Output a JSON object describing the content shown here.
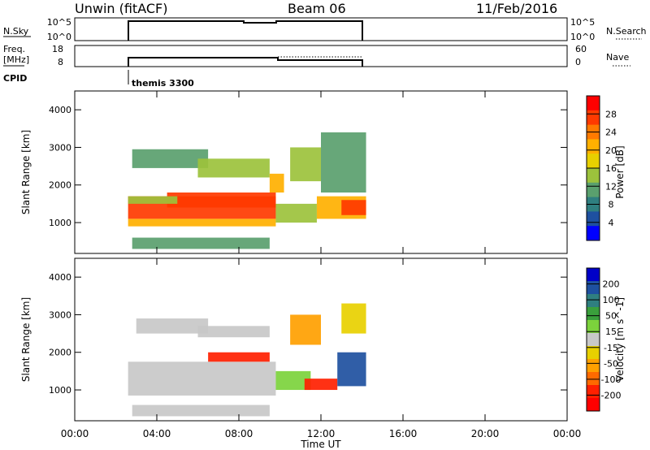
{
  "header": {
    "station": "Unwin (fitACF)",
    "beam": "Beam 06",
    "date": "11/Feb/2016"
  },
  "top_panels": {
    "nsky_label": "N.Sky",
    "nsky_ticks": [
      "10^5",
      "10^0"
    ],
    "nsearch_label": "N.Search",
    "freq_label_1": "Freq.",
    "freq_label_2": "[MHz]",
    "freq_ticks": [
      "18",
      "8"
    ],
    "nave_ticks": [
      "60",
      "0"
    ],
    "nave_label": "Nave",
    "cpid_label": "CPID",
    "cpid_value": "themis 3300"
  },
  "x_axis": {
    "label": "Time UT",
    "ticks": [
      "00:00",
      "04:00",
      "08:00",
      "12:00",
      "16:00",
      "20:00",
      "00:00"
    ]
  },
  "power_colorbar": {
    "label": "Power [dB]",
    "ticks": [
      "28",
      "24",
      "20",
      "16",
      "12",
      "8",
      "4"
    ],
    "colors": [
      "#ff0000",
      "#ff3a00",
      "#ff7a00",
      "#ffb000",
      "#e8d000",
      "#9cc23c",
      "#5aa06e",
      "#2f7f80",
      "#1e50a0",
      "#0000ff"
    ]
  },
  "velocity_colorbar": {
    "label": "Velocity [m s^-1]",
    "ticks": [
      "200",
      "100",
      "50",
      "15",
      "-15",
      "-50",
      "-100",
      "-200"
    ],
    "colors": [
      "#0000c8",
      "#1e50a0",
      "#2f7f80",
      "#3aa03c",
      "#7cd23c",
      "#c8c8c8",
      "#e8d000",
      "#ffa000",
      "#ff6a00",
      "#ff2000",
      "#ff0000"
    ]
  },
  "chart_data": [
    {
      "type": "heatmap",
      "title": "",
      "xlabel": "Time UT",
      "ylabel": "Slant Range [km]",
      "xlim": [
        0,
        24
      ],
      "ylim": [
        180,
        4500
      ],
      "yticks": [
        "4000",
        "3000",
        "2000",
        "1000"
      ],
      "colorbar_label": "Power [dB]",
      "color_range": [
        0,
        32
      ],
      "cells": [
        {
          "t0": 2.6,
          "t1": 9.8,
          "r0": 1100,
          "r1": 1700,
          "value": 28
        },
        {
          "t0": 2.6,
          "t1": 9.8,
          "r0": 900,
          "r1": 1100,
          "value": 22
        },
        {
          "t0": 4.5,
          "t1": 9.8,
          "r0": 1400,
          "r1": 1800,
          "value": 26
        },
        {
          "t0": 2.6,
          "t1": 5.0,
          "r0": 1500,
          "r1": 1700,
          "value": 14
        },
        {
          "t0": 9.8,
          "t1": 11.8,
          "r0": 1000,
          "r1": 1500,
          "value": 14
        },
        {
          "t0": 11.8,
          "t1": 14.2,
          "r0": 1100,
          "r1": 1700,
          "value": 20
        },
        {
          "t0": 13.0,
          "t1": 14.2,
          "r0": 1200,
          "r1": 1600,
          "value": 26
        },
        {
          "t0": 2.8,
          "t1": 6.5,
          "r0": 2450,
          "r1": 2950,
          "value": 10
        },
        {
          "t0": 6.0,
          "t1": 9.5,
          "r0": 2200,
          "r1": 2700,
          "value": 14
        },
        {
          "t0": 9.5,
          "t1": 10.2,
          "r0": 1800,
          "r1": 2300,
          "value": 22
        },
        {
          "t0": 10.5,
          "t1": 12.0,
          "r0": 2100,
          "r1": 3000,
          "value": 16
        },
        {
          "t0": 12.0,
          "t1": 14.2,
          "r0": 1800,
          "r1": 3400,
          "value": 12
        },
        {
          "t0": 2.8,
          "t1": 9.5,
          "r0": 300,
          "r1": 600,
          "value": 10
        }
      ]
    },
    {
      "type": "heatmap",
      "title": "",
      "xlabel": "Time UT",
      "ylabel": "Slant Range [km]",
      "xlim": [
        0,
        24
      ],
      "ylim": [
        180,
        4500
      ],
      "yticks": [
        "4000",
        "3000",
        "2000",
        "1000"
      ],
      "colorbar_label": "Velocity [m s^-1]",
      "color_range": [
        -250,
        250
      ],
      "cells": [
        {
          "t0": 2.6,
          "t1": 9.8,
          "r0": 850,
          "r1": 1750,
          "value": 0
        },
        {
          "t0": 9.8,
          "t1": 11.5,
          "r0": 1000,
          "r1": 1500,
          "value": 30
        },
        {
          "t0": 3.0,
          "t1": 6.5,
          "r0": 2500,
          "r1": 2900,
          "value": 0
        },
        {
          "t0": 6.0,
          "t1": 9.5,
          "r0": 2400,
          "r1": 2700,
          "value": -10
        },
        {
          "t0": 6.5,
          "t1": 9.5,
          "r0": 1750,
          "r1": 2000,
          "value": -200
        },
        {
          "t0": 11.2,
          "t1": 12.8,
          "r0": 1000,
          "r1": 1300,
          "value": -180
        },
        {
          "t0": 12.8,
          "t1": 14.2,
          "r0": 1100,
          "r1": 2000,
          "value": 200
        },
        {
          "t0": 10.5,
          "t1": 12.0,
          "r0": 2200,
          "r1": 3000,
          "value": -80
        },
        {
          "t0": 2.8,
          "t1": 9.5,
          "r0": 300,
          "r1": 600,
          "value": 20
        },
        {
          "t0": 13.0,
          "t1": 14.2,
          "r0": 2500,
          "r1": 3300,
          "value": -30
        }
      ]
    }
  ]
}
